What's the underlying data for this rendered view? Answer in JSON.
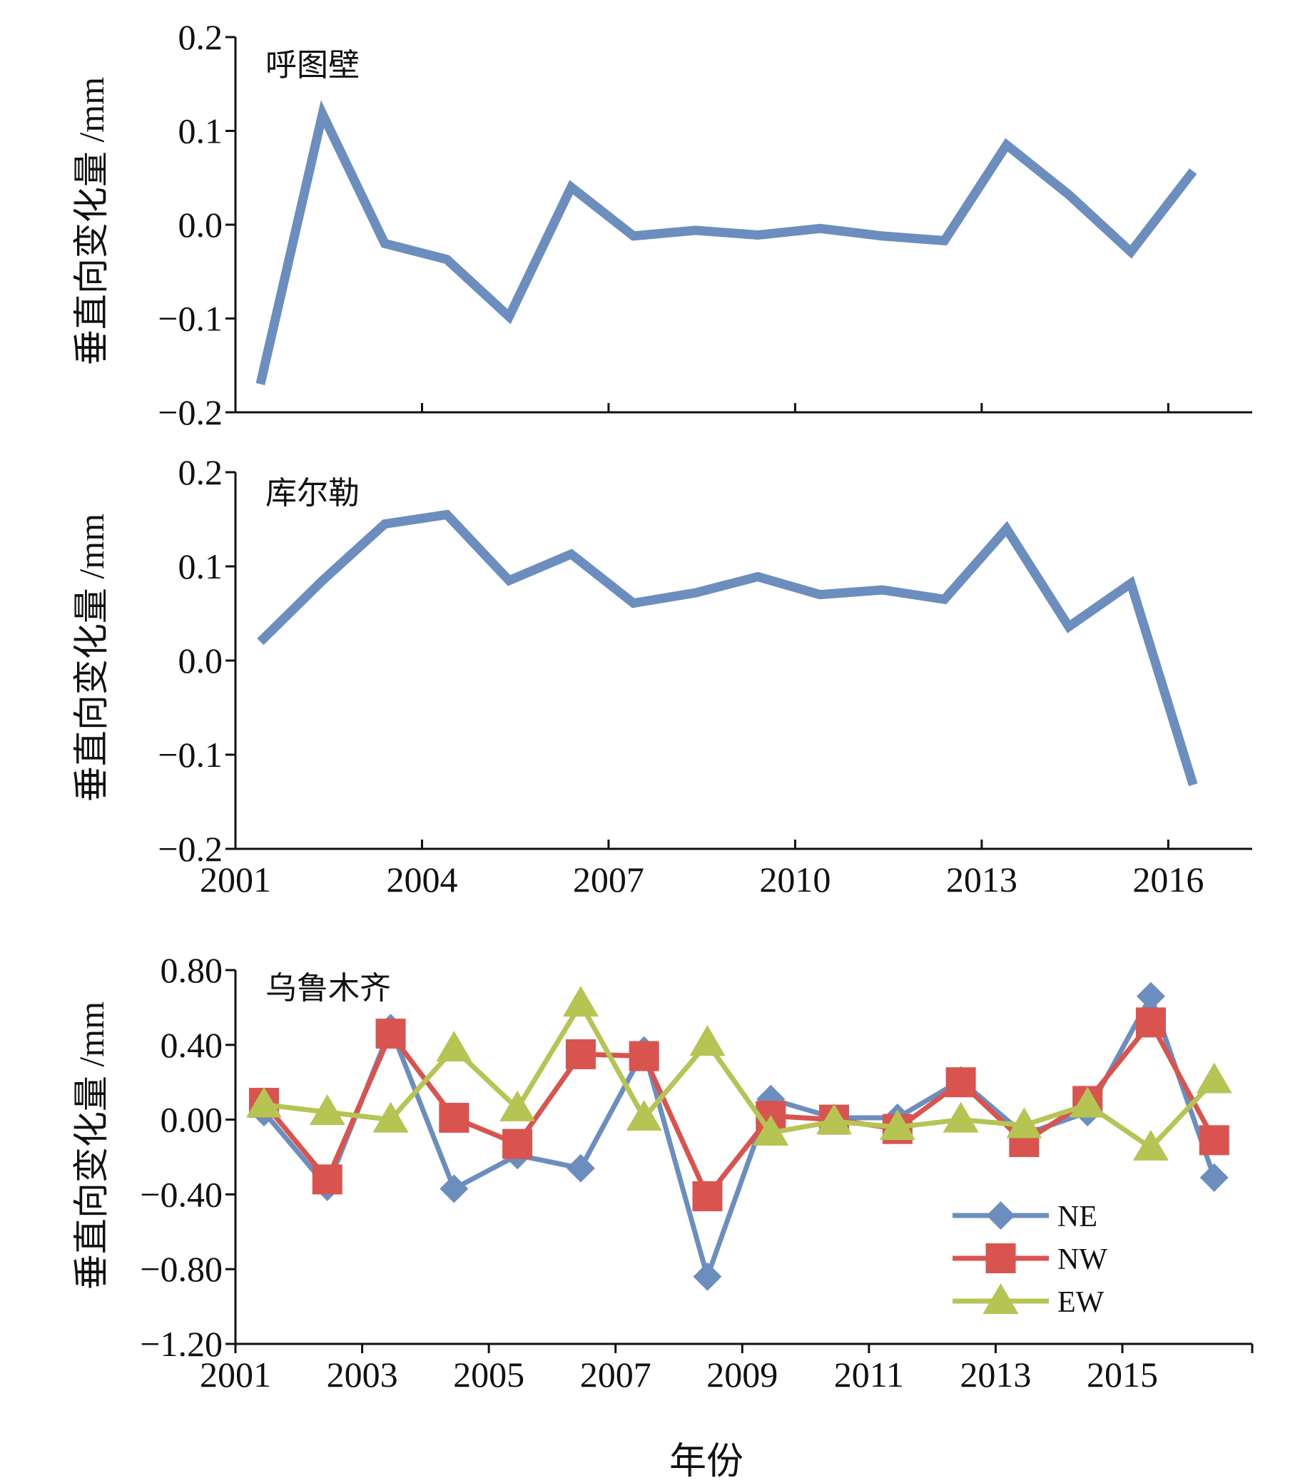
{
  "colors": {
    "NE": "#6c8ebf",
    "NW": "#d9534f",
    "EW": "#b5c453",
    "axis": "#111111"
  },
  "xlabel": "年份",
  "chart_data": [
    {
      "type": "line",
      "title": "呼图壁",
      "ylabel": "垂直向变化量 /mm",
      "xlim": [
        2001,
        2017.35
      ],
      "ylim": [
        -0.2,
        0.2
      ],
      "yticks": [
        "0.2",
        "0.1",
        "0.0",
        "−0.1",
        "−0.2"
      ],
      "ytick_values": [
        0.2,
        0.1,
        0.0,
        -0.1,
        -0.2
      ],
      "xtick_values": [
        2004,
        2007,
        2010,
        2013,
        2016
      ],
      "xtick_labels": [],
      "series": [
        {
          "name": "NE",
          "x": [
            2001.4,
            2002.4,
            2003.4,
            2004.4,
            2005.4,
            2006.4,
            2007.4,
            2008.4,
            2009.4,
            2010.4,
            2011.4,
            2012.4,
            2013.4,
            2014.4,
            2015.4,
            2016.4
          ],
          "values": [
            -0.17,
            0.118,
            -0.02,
            -0.037,
            -0.098,
            0.04,
            -0.012,
            -0.006,
            -0.011,
            -0.004,
            -0.012,
            -0.017,
            0.085,
            0.032,
            -0.029,
            0.057
          ]
        }
      ]
    },
    {
      "type": "line",
      "title": "库尔勒",
      "ylabel": "垂直向变化量 /mm",
      "xlim": [
        2001,
        2017.35
      ],
      "ylim": [
        -0.2,
        0.2
      ],
      "yticks": [
        "0.2",
        "0.1",
        "0.0",
        "−0.1",
        "−0.2"
      ],
      "ytick_values": [
        0.2,
        0.1,
        0.0,
        -0.1,
        -0.2
      ],
      "xtick_values": [
        2001,
        2004,
        2007,
        2010,
        2013,
        2016
      ],
      "xtick_labels": [
        "2001",
        "2004",
        "2007",
        "2010",
        "2013",
        "2016"
      ],
      "series": [
        {
          "name": "NE",
          "x": [
            2001.4,
            2002.4,
            2003.4,
            2004.4,
            2005.4,
            2006.4,
            2007.4,
            2008.4,
            2009.4,
            2010.4,
            2011.4,
            2012.4,
            2013.4,
            2014.4,
            2015.4,
            2016.4
          ],
          "values": [
            0.02,
            0.085,
            0.145,
            0.155,
            0.085,
            0.113,
            0.061,
            0.072,
            0.089,
            0.07,
            0.075,
            0.065,
            0.14,
            0.036,
            0.082,
            -0.132
          ]
        }
      ]
    },
    {
      "type": "line",
      "title": "乌鲁木齐",
      "ylabel": "垂直向变化量 /mm",
      "xlim": [
        2001,
        2017.05
      ],
      "ylim": [
        -1.2,
        0.8
      ],
      "yticks": [
        "0.80",
        "0.40",
        "0.00",
        "−0.40",
        "−0.80",
        "−1.20"
      ],
      "ytick_values": [
        0.8,
        0.4,
        0.0,
        -0.4,
        -0.8,
        -1.2
      ],
      "xtick_values": [
        2001,
        2003,
        2005,
        2007,
        2009,
        2011,
        2013,
        2015
      ],
      "xtick_labels": [
        "2001",
        "2003",
        "2005",
        "2007",
        "2009",
        "2011",
        "2013",
        "2015"
      ],
      "legend": [
        "NE",
        "NW",
        "EW"
      ],
      "series": [
        {
          "name": "NE",
          "marker": "diamond",
          "x": [
            2001.45,
            2002.45,
            2003.45,
            2004.45,
            2005.45,
            2006.45,
            2007.45,
            2008.45,
            2009.45,
            2010.45,
            2011.45,
            2012.45,
            2013.45,
            2014.45,
            2015.45,
            2016.45
          ],
          "values": [
            0.04,
            -0.36,
            0.49,
            -0.37,
            -0.19,
            -0.26,
            0.37,
            -0.84,
            0.11,
            0.01,
            0.01,
            0.21,
            -0.08,
            0.04,
            0.66,
            -0.31
          ]
        },
        {
          "name": "NW",
          "marker": "square",
          "x": [
            2001.45,
            2002.45,
            2003.45,
            2004.45,
            2005.45,
            2006.45,
            2007.45,
            2008.45,
            2009.45,
            2010.45,
            2011.45,
            2012.45,
            2013.45,
            2014.45,
            2015.45,
            2016.45
          ],
          "values": [
            0.09,
            -0.32,
            0.46,
            0.01,
            -0.13,
            0.35,
            0.34,
            -0.41,
            0.02,
            0.0,
            -0.05,
            0.2,
            -0.12,
            0.1,
            0.52,
            -0.11
          ]
        },
        {
          "name": "EW",
          "marker": "triangle",
          "x": [
            2001.45,
            2002.45,
            2003.45,
            2004.45,
            2005.45,
            2006.45,
            2007.45,
            2008.45,
            2009.45,
            2010.45,
            2011.45,
            2012.45,
            2013.45,
            2014.45,
            2015.45,
            2016.45
          ],
          "values": [
            0.08,
            0.04,
            0.0,
            0.38,
            0.06,
            0.62,
            0.01,
            0.41,
            -0.07,
            -0.01,
            -0.04,
            0.0,
            -0.03,
            0.08,
            -0.15,
            0.21
          ]
        }
      ]
    }
  ]
}
